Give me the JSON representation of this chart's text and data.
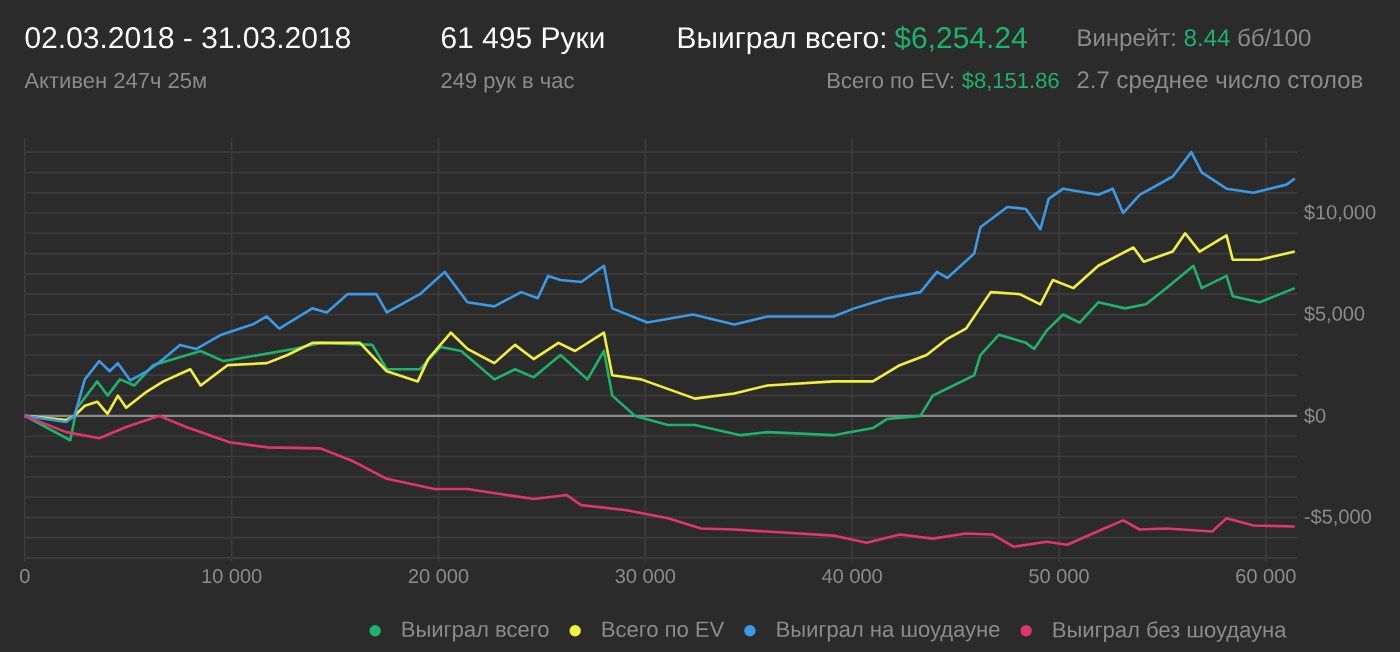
{
  "chart_data": {
    "type": "line",
    "annotations": [
      "02.03.2018 - 31.03.2018",
      "Активен 247ч 25м",
      "61 495 Руки",
      "249 рук в час",
      "Выиграл всего:",
      "$6,254.24",
      "Всего по EV:",
      "$8,151.86",
      "Винрейт:",
      "8.44",
      "бб/100",
      "2.7 среднее число столов"
    ],
    "xlim": [
      0,
      61500
    ],
    "ylim": [
      -7200,
      13700
    ],
    "xticks": [
      {
        "value": 0,
        "label": "0"
      },
      {
        "value": 10000,
        "label": "10 000"
      },
      {
        "value": 20000,
        "label": "20 000"
      },
      {
        "value": 30000,
        "label": "30 000"
      },
      {
        "value": 40000,
        "label": "40 000"
      },
      {
        "value": 50000,
        "label": "50 000"
      },
      {
        "value": 60000,
        "label": "60 000"
      }
    ],
    "yticks": [
      {
        "value": -7000,
        "label": null
      },
      {
        "value": -6000,
        "label": null
      },
      {
        "value": -5000,
        "label": "-$5,000"
      },
      {
        "value": -4000,
        "label": null
      },
      {
        "value": -3000,
        "label": null
      },
      {
        "value": -2000,
        "label": null
      },
      {
        "value": -1000,
        "label": null
      },
      {
        "value": 0,
        "label": "$0"
      },
      {
        "value": 1000,
        "label": null
      },
      {
        "value": 2000,
        "label": null
      },
      {
        "value": 3000,
        "label": null
      },
      {
        "value": 4000,
        "label": null
      },
      {
        "value": 5000,
        "label": "$5,000"
      },
      {
        "value": 6000,
        "label": null
      },
      {
        "value": 7000,
        "label": null
      },
      {
        "value": 8000,
        "label": null
      },
      {
        "value": 9000,
        "label": null
      },
      {
        "value": 10000,
        "label": "$10,000"
      },
      {
        "value": 11000,
        "label": null
      },
      {
        "value": 12000,
        "label": null
      },
      {
        "value": 13000,
        "label": null
      }
    ],
    "grid": true,
    "legend": "bottom right",
    "marker": "none",
    "line_style": "solid",
    "ref_lines": [
      {
        "axis": "y",
        "value": 0,
        "color": "#8a8a8a"
      }
    ],
    "series": [
      {
        "name": "Выиграл всего",
        "color": "#1db36b",
        "x": [
          0,
          2200,
          2500,
          3500,
          4000,
          4600,
          5300,
          6200,
          7200,
          8500,
          9600,
          11300,
          13000,
          14300,
          16800,
          17500,
          19100,
          20100,
          21100,
          22700,
          23700,
          24600,
          25900,
          27200,
          28000,
          28400,
          29500,
          31100,
          32400,
          34600,
          35900,
          39100,
          41000,
          41700,
          43300,
          43900,
          44600,
          45900,
          46200,
          47100,
          48400,
          48800,
          49400,
          50200,
          51000,
          51900,
          53200,
          54200,
          55200,
          56500,
          56900,
          58100,
          58400,
          59700,
          61400
        ],
        "values": [
          0,
          -1200,
          350,
          1700,
          1000,
          1800,
          1500,
          2500,
          2800,
          3200,
          2700,
          3000,
          3300,
          3600,
          3500,
          2300,
          2300,
          3400,
          3200,
          1800,
          2300,
          1900,
          3000,
          1800,
          3200,
          1000,
          0,
          -450,
          -450,
          -950,
          -800,
          -950,
          -600,
          -150,
          0,
          1000,
          1350,
          2000,
          3000,
          4000,
          3600,
          3300,
          4200,
          5000,
          4600,
          5600,
          5300,
          5500,
          6300,
          7400,
          6300,
          6900,
          5900,
          5600,
          6300
        ]
      },
      {
        "name": "Всего по EV",
        "color": "#f3f03c",
        "x": [
          0,
          2000,
          2400,
          2900,
          3500,
          4000,
          4500,
          4900,
          5900,
          6700,
          8000,
          8500,
          9800,
          11700,
          12700,
          13900,
          16200,
          17500,
          19000,
          19500,
          20600,
          21400,
          22700,
          23700,
          24600,
          25800,
          26600,
          28000,
          28400,
          29800,
          32400,
          34300,
          35900,
          39100,
          41000,
          42300,
          43600,
          44600,
          45500,
          46700,
          48100,
          49100,
          49700,
          50700,
          51900,
          53600,
          54100,
          55500,
          56100,
          56800,
          58100,
          58400,
          59700,
          61400
        ],
        "values": [
          0,
          -200,
          0,
          500,
          700,
          100,
          1000,
          400,
          1200,
          1700,
          2300,
          1500,
          2500,
          2600,
          3000,
          3600,
          3600,
          2200,
          1700,
          2800,
          4100,
          3300,
          2600,
          3500,
          2800,
          3600,
          3200,
          4100,
          2000,
          1800,
          850,
          1100,
          1500,
          1700,
          1700,
          2500,
          3000,
          3800,
          4300,
          6100,
          6000,
          5500,
          6700,
          6300,
          7400,
          8300,
          7600,
          8100,
          9000,
          8100,
          8900,
          7700,
          7700,
          8100
        ]
      },
      {
        "name": "Выиграл на шоудауне",
        "color": "#3a9ae6",
        "x": [
          0,
          2000,
          2400,
          2900,
          3600,
          4100,
          4500,
          5100,
          5900,
          6700,
          7500,
          8300,
          9500,
          11000,
          11700,
          12300,
          13900,
          14600,
          15600,
          17000,
          17500,
          19100,
          20300,
          21400,
          22700,
          24000,
          24800,
          25300,
          25900,
          26900,
          28000,
          28400,
          30100,
          32300,
          34300,
          35900,
          39100,
          40100,
          41700,
          43300,
          44100,
          44600,
          45900,
          46200,
          47500,
          48400,
          49100,
          49500,
          50200,
          51900,
          52600,
          53100,
          53900,
          55500,
          56400,
          56900,
          58100,
          59400,
          61000,
          61400
        ],
        "values": [
          0,
          -300,
          0,
          1800,
          2700,
          2200,
          2600,
          1750,
          2200,
          2800,
          3500,
          3300,
          4000,
          4500,
          4900,
          4300,
          5300,
          5100,
          6000,
          6000,
          5100,
          6000,
          7100,
          5600,
          5400,
          6100,
          5800,
          6900,
          6700,
          6600,
          7400,
          5300,
          4600,
          5000,
          4500,
          4900,
          4900,
          5300,
          5800,
          6100,
          7100,
          6800,
          8000,
          9300,
          10300,
          10200,
          9200,
          10700,
          11200,
          10900,
          11200,
          10000,
          10900,
          11800,
          13000,
          12000,
          11200,
          11000,
          11400,
          11700
        ]
      },
      {
        "name": "Выиграл без шоудауна",
        "color": "#e0356e",
        "x": [
          0,
          2000,
          3600,
          4900,
          6500,
          7800,
          9900,
          11700,
          14300,
          15900,
          17500,
          19800,
          21400,
          23000,
          24600,
          26200,
          26900,
          29100,
          31100,
          32700,
          34300,
          35900,
          39100,
          40700,
          42300,
          43900,
          45500,
          46800,
          47800,
          49400,
          50400,
          52300,
          53100,
          53900,
          55200,
          57400,
          58100,
          59400,
          61400
        ],
        "values": [
          0,
          -800,
          -1100,
          -550,
          0,
          -550,
          -1300,
          -1550,
          -1600,
          -2250,
          -3100,
          -3600,
          -3600,
          -3850,
          -4100,
          -3900,
          -4400,
          -4650,
          -5050,
          -5550,
          -5600,
          -5700,
          -5900,
          -6250,
          -5850,
          -6050,
          -5800,
          -5850,
          -6450,
          -6200,
          -6350,
          -5500,
          -5150,
          -5600,
          -5550,
          -5700,
          -5050,
          -5400,
          -5450
        ]
      }
    ]
  }
}
